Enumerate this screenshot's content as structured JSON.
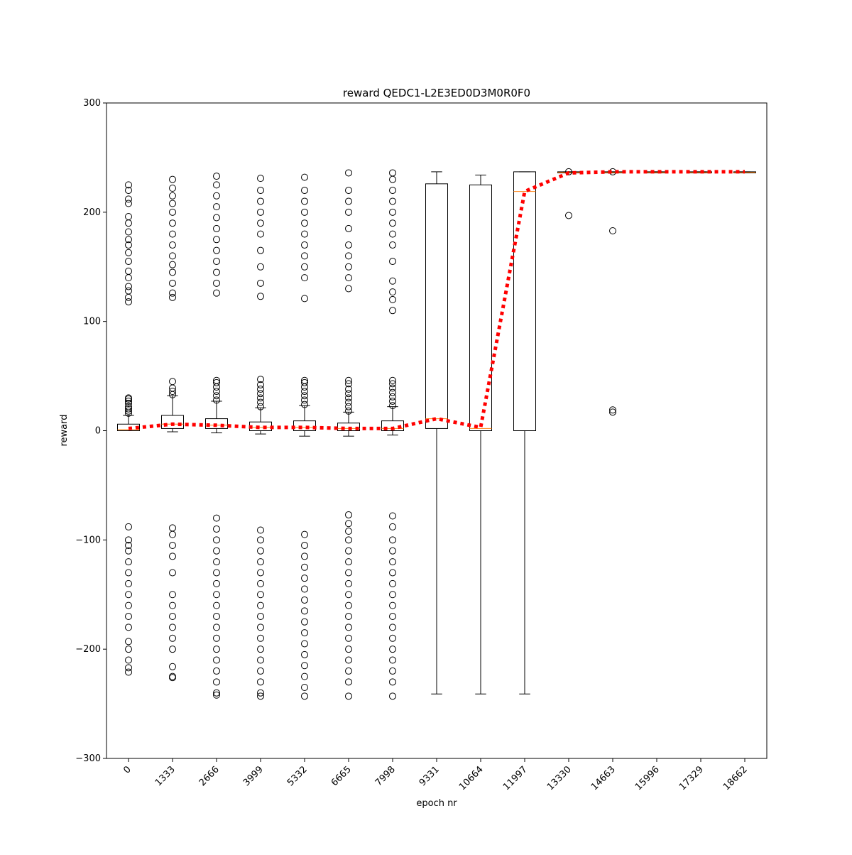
{
  "chart_data": {
    "type": "box",
    "title": "reward QEDC1-L2E3ED0D3M0R0F0",
    "x_label": "epoch nr",
    "y_label": "reward",
    "categories": [
      "0",
      "1333",
      "2666",
      "3999",
      "5332",
      "6665",
      "7998",
      "9331",
      "10664",
      "11997",
      "13330",
      "14663",
      "15996",
      "17329",
      "18662"
    ],
    "ylim": [
      -300,
      300
    ],
    "yticks": [
      {
        "value": -300,
        "label": "−300"
      },
      {
        "value": -200,
        "label": "−200"
      },
      {
        "value": -100,
        "label": "−100"
      },
      0,
      100,
      200,
      300
    ],
    "box_color": "#000000",
    "median_color": "#ff7f0e",
    "mean_color": "#ff0000",
    "boxes": [
      {
        "whislo": 0,
        "q1": 0,
        "med": 1,
        "q3": 6,
        "whishi": 14,
        "fliers": [
          16,
          18,
          20,
          22,
          25,
          27,
          29,
          30,
          118,
          122,
          128,
          132,
          140,
          146,
          155,
          163,
          170,
          175,
          182,
          190,
          196,
          208,
          212,
          220,
          225,
          -88,
          -100,
          -105,
          -110,
          -120,
          -130,
          -140,
          -150,
          -160,
          -170,
          -180,
          -193,
          -200,
          -210,
          -217,
          -221
        ]
      },
      {
        "whislo": -1,
        "q1": 2,
        "med": 6,
        "q3": 14,
        "whishi": 32,
        "fliers": [
          33,
          36,
          39,
          45,
          122,
          126,
          135,
          145,
          152,
          160,
          170,
          180,
          190,
          200,
          208,
          215,
          222,
          230,
          -89,
          -95,
          -105,
          -115,
          -130,
          -150,
          -160,
          -170,
          -180,
          -190,
          -200,
          -216,
          -225,
          -226
        ]
      },
      {
        "whislo": -2,
        "q1": 2,
        "med": 5,
        "q3": 11,
        "whishi": 27,
        "fliers": [
          28,
          32,
          36,
          40,
          44,
          46,
          126,
          135,
          145,
          155,
          165,
          175,
          185,
          195,
          205,
          215,
          225,
          233,
          -80,
          -90,
          -100,
          -110,
          -120,
          -130,
          -140,
          -150,
          -160,
          -170,
          -180,
          -190,
          -200,
          -210,
          -220,
          -230,
          -240,
          -242
        ]
      },
      {
        "whislo": -3,
        "q1": 0,
        "med": 3,
        "q3": 8,
        "whishi": 21,
        "fliers": [
          22,
          26,
          30,
          34,
          38,
          42,
          47,
          123,
          135,
          150,
          165,
          180,
          190,
          200,
          210,
          220,
          231,
          -91,
          -100,
          -110,
          -120,
          -130,
          -140,
          -150,
          -160,
          -170,
          -180,
          -190,
          -200,
          -210,
          -220,
          -230,
          -240,
          -243
        ]
      },
      {
        "whislo": -5,
        "q1": 0,
        "med": 3,
        "q3": 9,
        "whishi": 23,
        "fliers": [
          24,
          28,
          32,
          36,
          40,
          44,
          46,
          121,
          140,
          150,
          160,
          170,
          180,
          190,
          200,
          210,
          220,
          232,
          -95,
          -105,
          -115,
          -125,
          -135,
          -145,
          -155,
          -165,
          -175,
          -185,
          -195,
          -205,
          -215,
          -225,
          -235,
          -243
        ]
      },
      {
        "whislo": -5,
        "q1": 0,
        "med": 2,
        "q3": 7,
        "whishi": 17,
        "fliers": [
          18,
          22,
          26,
          30,
          34,
          38,
          43,
          46,
          130,
          140,
          150,
          160,
          170,
          185,
          200,
          210,
          220,
          236,
          -77,
          -85,
          -92,
          -100,
          -110,
          -120,
          -130,
          -140,
          -150,
          -160,
          -170,
          -180,
          -190,
          -200,
          -210,
          -220,
          -230,
          -243
        ]
      },
      {
        "whislo": -4,
        "q1": 0,
        "med": 2,
        "q3": 9,
        "whishi": 22,
        "fliers": [
          23,
          27,
          31,
          35,
          39,
          43,
          46,
          110,
          120,
          127,
          137,
          155,
          170,
          180,
          190,
          200,
          210,
          220,
          230,
          236,
          -78,
          -88,
          -100,
          -110,
          -120,
          -130,
          -140,
          -150,
          -160,
          -170,
          -180,
          -190,
          -200,
          -210,
          -220,
          -230,
          -243
        ]
      },
      {
        "whislo": -241,
        "q1": 2,
        "med": 11,
        "q3": 226,
        "whishi": 237,
        "fliers": []
      },
      {
        "whislo": -241,
        "q1": 0,
        "med": 2,
        "q3": 225,
        "whishi": 234,
        "fliers": []
      },
      {
        "whislo": -241,
        "q1": 0,
        "med": 219,
        "q3": 237,
        "whishi": 237,
        "fliers": []
      },
      {
        "whislo": 236,
        "q1": 236,
        "med": 236.5,
        "q3": 237,
        "whishi": 237,
        "fliers": [
          237,
          197
        ]
      },
      {
        "whislo": 236,
        "q1": 236,
        "med": 236.5,
        "q3": 237,
        "whishi": 237,
        "fliers": [
          237,
          183,
          19,
          17
        ]
      },
      {
        "whislo": 236,
        "q1": 236,
        "med": 236.5,
        "q3": 237,
        "whishi": 237,
        "fliers": []
      },
      {
        "whislo": 236,
        "q1": 236,
        "med": 236.5,
        "q3": 237,
        "whishi": 237,
        "fliers": []
      },
      {
        "whislo": 236,
        "q1": 236,
        "med": 236.5,
        "q3": 237,
        "whishi": 237,
        "fliers": []
      }
    ],
    "means": [
      2,
      6,
      5,
      3,
      3,
      2,
      2,
      11,
      3,
      219,
      236,
      237,
      237,
      237,
      237
    ]
  }
}
